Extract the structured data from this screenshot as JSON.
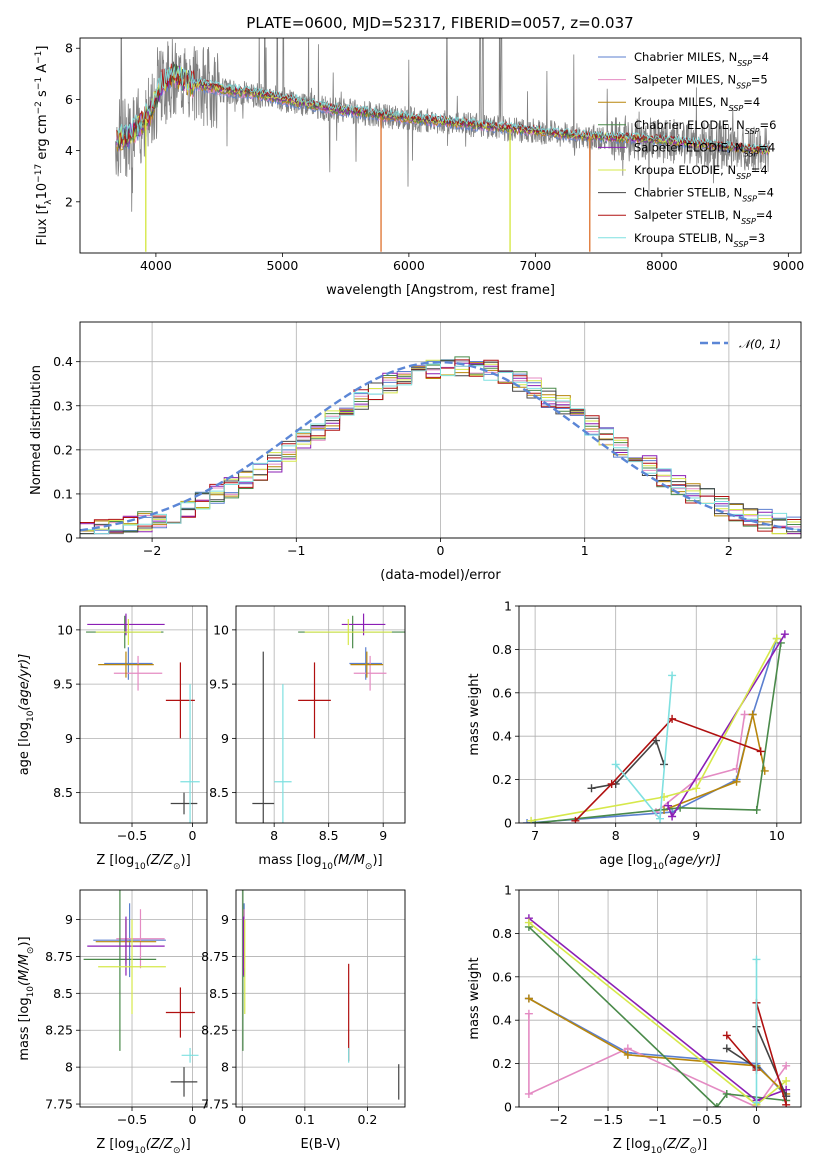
{
  "figure": {
    "title": "PLATE=0600, MJD=52317, FIBERID=0057, z=0.037"
  },
  "series": [
    {
      "key": "chabrier_miles",
      "color": "#5b7fcf",
      "label": "Chabrier MILES, N",
      "sub": "SSP",
      "suffix": "=4"
    },
    {
      "key": "salpeter_miles",
      "color": "#e48bc3",
      "label": "Salpeter MILES, N",
      "sub": "SSP",
      "suffix": "=5"
    },
    {
      "key": "kroupa_miles",
      "color": "#b8860b",
      "label": "Kroupa MILES, N",
      "sub": "SSP",
      "suffix": "=4"
    },
    {
      "key": "chabrier_elodie",
      "color": "#4a8a4a",
      "label": "Chabrier ELODIE, N",
      "sub": "SSP",
      "suffix": "=6"
    },
    {
      "key": "salpeter_elodie",
      "color": "#8b1fb5",
      "label": "Salpeter ELODIE, N",
      "sub": "SSP",
      "suffix": "=4"
    },
    {
      "key": "kroupa_elodie",
      "color": "#d6e84a",
      "label": "Kroupa ELODIE, N",
      "sub": "SSP",
      "suffix": "=4"
    },
    {
      "key": "chabrier_stelib",
      "color": "#444444",
      "label": "Chabrier STELIB, N",
      "sub": "SSP",
      "suffix": "=4"
    },
    {
      "key": "salpeter_stelib",
      "color": "#b01010",
      "label": "Salpeter STELIB, N",
      "sub": "SSP",
      "suffix": "=4"
    },
    {
      "key": "kroupa_stelib",
      "color": "#7fe0e0",
      "label": "Kroupa STELIB, N",
      "sub": "SSP",
      "suffix": "=3"
    }
  ],
  "chart_data": [
    {
      "id": "spectrum",
      "type": "line",
      "title": "PLATE=0600, MJD=52317, FIBERID=0057, z=0.037",
      "xlabel": "wavelength [Angstrom, rest frame]",
      "ylabel_parts": [
        "Flux [f",
        "λ",
        "10",
        "−17",
        " erg cm",
        "−2",
        " s",
        "−1",
        " A",
        "−1",
        "]"
      ],
      "xlim": [
        3400,
        9100
      ],
      "ylim": [
        0,
        8.4
      ],
      "xticks": [
        4000,
        5000,
        6000,
        7000,
        8000,
        9000
      ],
      "yticks": [
        2,
        4,
        6,
        8
      ],
      "data_color": "#808080",
      "model_continuum": [
        [
          3680,
          4.4
        ],
        [
          3800,
          4.6
        ],
        [
          3950,
          5.4
        ],
        [
          4050,
          6.6
        ],
        [
          4150,
          7.0
        ],
        [
          4250,
          6.6
        ],
        [
          4400,
          6.5
        ],
        [
          4600,
          6.3
        ],
        [
          4800,
          6.2
        ],
        [
          5000,
          6.0
        ],
        [
          5200,
          5.8
        ],
        [
          5400,
          5.6
        ],
        [
          5600,
          5.5
        ],
        [
          5800,
          5.35
        ],
        [
          6000,
          5.25
        ],
        [
          6200,
          5.15
        ],
        [
          6400,
          5.05
        ],
        [
          6600,
          4.95
        ],
        [
          6800,
          4.85
        ],
        [
          7000,
          4.75
        ],
        [
          7200,
          4.65
        ],
        [
          7400,
          4.55
        ],
        [
          7600,
          4.5
        ],
        [
          7800,
          4.45
        ],
        [
          8000,
          4.4
        ],
        [
          8200,
          4.3
        ],
        [
          8400,
          4.2
        ],
        [
          8600,
          4.1
        ],
        [
          8800,
          4.0
        ]
      ],
      "emission_lines": [
        3727,
        4861,
        4959,
        5007,
        6300,
        6563,
        6584,
        6717,
        6731
      ],
      "dropouts": [
        [
          5780,
          "#e07a3a"
        ],
        [
          6800,
          "#d6e84a"
        ],
        [
          7430,
          "#e07a3a"
        ],
        [
          3920,
          "#d6e84a"
        ]
      ]
    },
    {
      "id": "residuals",
      "type": "line",
      "xlabel": "(data-model)/error",
      "ylabel": "Normed distribution",
      "xlim": [
        -2.5,
        2.5
      ],
      "ylim": [
        0,
        0.49
      ],
      "xticks": [
        -2,
        -1,
        0,
        1,
        2
      ],
      "yticks": [
        0.0,
        0.1,
        0.2,
        0.3,
        0.4
      ],
      "legend": "top-right",
      "legend_label": "𝒩(0, 1)",
      "gauss_color": "#5b86d6",
      "bin_width": 0.1
    },
    {
      "id": "z_vs_age",
      "type": "scatter",
      "xlabel": "Z [log",
      "xlabel_sub": "10",
      "xlabel_tail": "(Z/Z",
      "xlabel_end": ")]",
      "ylabel": "age  [log",
      "ylabel_tail": "(age/yr)]",
      "xlim": [
        -0.93,
        0.12
      ],
      "ylim": [
        8.22,
        10.22
      ],
      "xticks": [
        -0.5,
        0.0
      ],
      "yticks": [
        8.5,
        9.0,
        9.5,
        10.0
      ],
      "points": [
        {
          "s": 0,
          "x": -0.53,
          "y": 9.69,
          "xe": 0.2,
          "ye": 0.15
        },
        {
          "s": 1,
          "x": -0.45,
          "y": 9.6,
          "xe": 0.2,
          "ye": 0.16
        },
        {
          "s": 2,
          "x": -0.55,
          "y": 9.68,
          "xe": 0.23,
          "ye": 0.12
        },
        {
          "s": 3,
          "x": -0.56,
          "y": 9.98,
          "xe": 0.32,
          "ye": 0.15
        },
        {
          "s": 4,
          "x": -0.55,
          "y": 10.05,
          "xe": 0.32,
          "ye": 0.1
        },
        {
          "s": 5,
          "x": -0.53,
          "y": 9.98,
          "xe": 0.27,
          "ye": 0.12
        },
        {
          "s": 6,
          "x": -0.07,
          "y": 8.4,
          "xe": 0.11,
          "ye": 0.1
        },
        {
          "s": 7,
          "x": -0.1,
          "y": 9.35,
          "xe": 0.12,
          "ye": 0.35
        },
        {
          "s": 8,
          "x": -0.02,
          "y": 8.6,
          "xe": 0.08,
          "ye": 0.9
        }
      ]
    },
    {
      "id": "mass_vs_age",
      "type": "scatter",
      "xlabel": "mass [log",
      "xlabel_tail": "(M/M",
      "xlabel_end": ")]",
      "xlim": [
        7.65,
        9.2
      ],
      "ylim": [
        8.22,
        10.22
      ],
      "xticks": [
        8.0,
        8.5,
        9.0
      ],
      "yticks": [
        8.5,
        9.0,
        9.5,
        10.0
      ],
      "points": [
        {
          "s": 0,
          "x": 8.84,
          "y": 9.69,
          "xe": 0.15,
          "ye": 0.15
        },
        {
          "s": 1,
          "x": 8.88,
          "y": 9.6,
          "xe": 0.15,
          "ye": 0.16
        },
        {
          "s": 2,
          "x": 8.85,
          "y": 9.68,
          "xe": 0.15,
          "ye": 0.12
        },
        {
          "s": 3,
          "x": 8.72,
          "y": 9.98,
          "xe": 0.5,
          "ye": 0.15
        },
        {
          "s": 4,
          "x": 8.82,
          "y": 10.05,
          "xe": 0.2,
          "ye": 0.1
        },
        {
          "s": 5,
          "x": 8.68,
          "y": 9.98,
          "xe": 0.4,
          "ye": 0.12
        },
        {
          "s": 6,
          "x": 7.9,
          "y": 8.4,
          "xe": 0.1,
          "ye": 1.4
        },
        {
          "s": 7,
          "x": 8.37,
          "y": 9.35,
          "xe": 0.15,
          "ye": 0.35
        },
        {
          "s": 8,
          "x": 8.08,
          "y": 8.6,
          "xe": 0.08,
          "ye": 0.9
        }
      ]
    },
    {
      "id": "age_vs_weight",
      "type": "line",
      "xlabel": "age  [log",
      "xlabel_tail": "(age/yr)]",
      "ylabel": "mass weight",
      "xlim": [
        6.8,
        10.3
      ],
      "ylim": [
        0,
        1.0
      ],
      "xticks": [
        7,
        8,
        9,
        10
      ],
      "yticks": [
        0.0,
        0.2,
        0.4,
        0.6,
        0.8,
        1.0
      ],
      "series": [
        {
          "s": 0,
          "pts": [
            [
              6.9,
              0.0
            ],
            [
              8.7,
              0.05
            ],
            [
              9.5,
              0.2
            ],
            [
              9.7,
              0.5
            ],
            [
              10.0,
              0.85
            ]
          ]
        },
        {
          "s": 1,
          "pts": [
            [
              8.5,
              0.05
            ],
            [
              9.0,
              0.2
            ],
            [
              9.5,
              0.25
            ],
            [
              9.6,
              0.5
            ]
          ]
        },
        {
          "s": 2,
          "pts": [
            [
              8.6,
              0.06
            ],
            [
              9.5,
              0.19
            ],
            [
              9.7,
              0.5
            ],
            [
              9.85,
              0.24
            ]
          ]
        },
        {
          "s": 3,
          "pts": [
            [
              7.0,
              0.0
            ],
            [
              8.8,
              0.07
            ],
            [
              9.75,
              0.06
            ],
            [
              10.05,
              0.83
            ]
          ]
        },
        {
          "s": 4,
          "pts": [
            [
              8.65,
              0.08
            ],
            [
              8.7,
              0.03
            ],
            [
              10.1,
              0.87
            ]
          ]
        },
        {
          "s": 5,
          "pts": [
            [
              6.95,
              0.01
            ],
            [
              8.6,
              0.12
            ],
            [
              9.0,
              0.16
            ],
            [
              10.0,
              0.85
            ]
          ]
        },
        {
          "s": 6,
          "pts": [
            [
              7.7,
              0.16
            ],
            [
              8.0,
              0.18
            ],
            [
              8.5,
              0.38
            ],
            [
              8.6,
              0.27
            ]
          ]
        },
        {
          "s": 7,
          "pts": [
            [
              7.5,
              0.01
            ],
            [
              7.95,
              0.18
            ],
            [
              8.7,
              0.48
            ],
            [
              9.8,
              0.33
            ]
          ]
        },
        {
          "s": 8,
          "pts": [
            [
              8.0,
              0.27
            ],
            [
              8.55,
              0.02
            ],
            [
              8.7,
              0.68
            ]
          ]
        }
      ]
    },
    {
      "id": "z_vs_mass",
      "type": "scatter",
      "xlabel": "Z [log",
      "xlabel_tail": "(Z/Z",
      "xlabel_end": ")]",
      "ylabel": "mass [log",
      "ylabel_tail": "(M/M",
      "ylabel_end": ")]",
      "xlim": [
        -0.93,
        0.12
      ],
      "ylim": [
        7.73,
        9.2
      ],
      "xticks": [
        -0.5,
        0.0
      ],
      "yticks": [
        7.75,
        8.0,
        8.25,
        8.5,
        8.75,
        9.0
      ],
      "points": [
        {
          "s": 0,
          "x": -0.52,
          "y": 8.86,
          "xe": 0.3,
          "ye": 0.25
        },
        {
          "s": 1,
          "x": -0.43,
          "y": 8.87,
          "xe": 0.2,
          "ye": 0.2
        },
        {
          "s": 2,
          "x": -0.55,
          "y": 8.85,
          "xe": 0.25,
          "ye": 0.15
        },
        {
          "s": 3,
          "x": -0.6,
          "y": 8.73,
          "xe": 0.3,
          "ye": 0.62
        },
        {
          "s": 4,
          "x": -0.55,
          "y": 8.82,
          "xe": 0.32,
          "ye": 0.2
        },
        {
          "s": 5,
          "x": -0.5,
          "y": 8.68,
          "xe": 0.28,
          "ye": 0.32
        },
        {
          "s": 6,
          "x": -0.07,
          "y": 7.9,
          "xe": 0.11,
          "ye": 0.1
        },
        {
          "s": 7,
          "x": -0.1,
          "y": 8.37,
          "xe": 0.12,
          "ye": 0.17
        },
        {
          "s": 8,
          "x": -0.02,
          "y": 8.08,
          "xe": 0.07,
          "ye": 0.05
        }
      ]
    },
    {
      "id": "ebv_vs_mass",
      "type": "scatter",
      "xlabel": "E(B-V)",
      "xlim": [
        -0.01,
        0.26
      ],
      "ylim": [
        7.73,
        9.2
      ],
      "xticks": [
        0.0,
        0.1,
        0.2
      ],
      "yticks": [
        7.75,
        8.0,
        8.25,
        8.5,
        8.75,
        9.0
      ],
      "points": [
        {
          "s": 0,
          "x": 0.003,
          "y": 8.86,
          "xe": 0.0,
          "ye": 0.25
        },
        {
          "s": 1,
          "x": 0.003,
          "y": 8.87,
          "xe": 0.0,
          "ye": 0.2
        },
        {
          "s": 2,
          "x": 0.002,
          "y": 8.85,
          "xe": 0.0,
          "ye": 0.15
        },
        {
          "s": 3,
          "x": 0.001,
          "y": 8.73,
          "xe": 0.0,
          "ye": 0.62
        },
        {
          "s": 4,
          "x": 0.002,
          "y": 8.82,
          "xe": 0.0,
          "ye": 0.2
        },
        {
          "s": 5,
          "x": 0.004,
          "y": 8.68,
          "xe": 0.0,
          "ye": 0.32
        },
        {
          "s": 6,
          "x": 0.25,
          "y": 7.9,
          "xe": 0.0,
          "ye": 0.12
        },
        {
          "s": 7,
          "x": 0.17,
          "y": 8.37,
          "xe": 0.0,
          "ye": 0.33
        },
        {
          "s": 8,
          "x": 0.17,
          "y": 8.08,
          "xe": 0.0,
          "ye": 0.05
        }
      ]
    },
    {
      "id": "z_vs_weight",
      "type": "line",
      "xlabel": "Z [log",
      "xlabel_tail": "(Z/Z",
      "xlabel_end": ")]",
      "ylabel": "mass weight",
      "xlim": [
        -2.4,
        0.45
      ],
      "ylim": [
        0,
        1.0
      ],
      "xticks": [
        -2.0,
        -1.5,
        -1.0,
        -0.5,
        0.0
      ],
      "yticks": [
        0.0,
        0.2,
        0.4,
        0.6,
        0.8,
        1.0
      ],
      "series": [
        {
          "s": 0,
          "pts": [
            [
              -2.3,
              0.5
            ],
            [
              -1.3,
              0.25
            ],
            [
              0.0,
              0.2
            ],
            [
              0.3,
              0.05
            ]
          ]
        },
        {
          "s": 1,
          "pts": [
            [
              -2.3,
              0.43
            ],
            [
              -2.3,
              0.06
            ],
            [
              -1.3,
              0.27
            ],
            [
              0.0,
              0.0
            ],
            [
              0.3,
              0.19
            ]
          ]
        },
        {
          "s": 2,
          "pts": [
            [
              -2.3,
              0.5
            ],
            [
              -1.3,
              0.24
            ],
            [
              0.0,
              0.19
            ],
            [
              0.3,
              0.06
            ]
          ]
        },
        {
          "s": 3,
          "pts": [
            [
              -2.3,
              0.83
            ],
            [
              -0.4,
              0.0
            ],
            [
              -0.3,
              0.06
            ],
            [
              0.3,
              0.03
            ]
          ]
        },
        {
          "s": 4,
          "pts": [
            [
              -2.3,
              0.87
            ],
            [
              0.0,
              0.03
            ],
            [
              0.3,
              0.08
            ]
          ]
        },
        {
          "s": 5,
          "pts": [
            [
              -2.3,
              0.85
            ],
            [
              0.0,
              0.01
            ],
            [
              0.3,
              0.12
            ]
          ]
        },
        {
          "s": 6,
          "pts": [
            [
              -0.3,
              0.27
            ],
            [
              0.0,
              0.18
            ],
            [
              0.0,
              0.37
            ],
            [
              0.3,
              0.05
            ]
          ]
        },
        {
          "s": 7,
          "pts": [
            [
              -0.3,
              0.33
            ],
            [
              0.0,
              0.17
            ],
            [
              0.0,
              0.48
            ],
            [
              0.3,
              0.01
            ]
          ]
        },
        {
          "s": 8,
          "pts": [
            [
              0.0,
              0.68
            ],
            [
              0.0,
              0.02
            ]
          ]
        }
      ]
    }
  ]
}
